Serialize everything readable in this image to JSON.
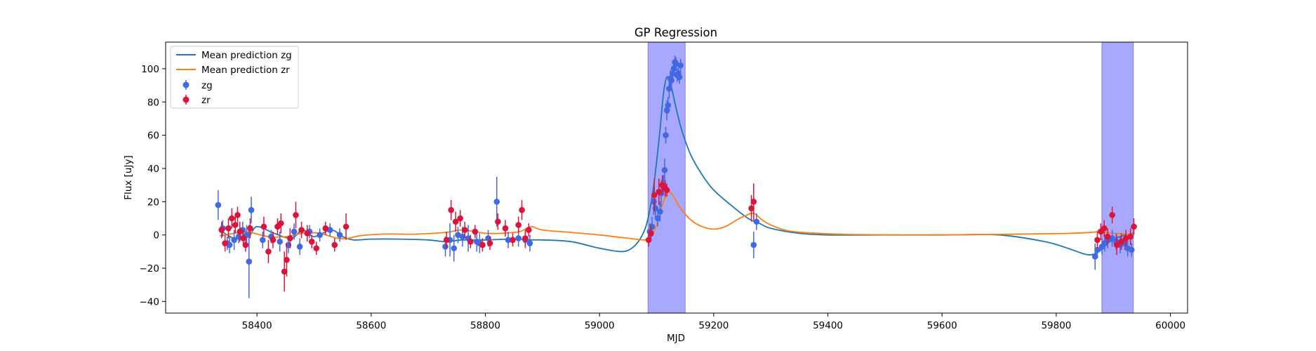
{
  "chart_data": {
    "type": "scatter",
    "title": "GP Regression",
    "xlabel": "MJD",
    "ylabel": "Flux [uJy]",
    "xlim": [
      58240,
      60030
    ],
    "ylim": [
      -47,
      116
    ],
    "xticks": [
      58400,
      58600,
      58800,
      59000,
      59200,
      59400,
      59600,
      59800,
      60000
    ],
    "yticks": [
      -40,
      -20,
      0,
      20,
      40,
      60,
      80,
      100
    ],
    "grid": false,
    "legend_position": "top-left",
    "colors": {
      "mean_zg": "#1f77b4",
      "mean_zr": "#ff7f0e",
      "zg": "#4169e1",
      "zr": "#dc143c",
      "shade": "#a8a8ff"
    },
    "shaded_regions": [
      [
        59085,
        59150
      ],
      [
        59880,
        59935
      ]
    ],
    "series": [
      {
        "name": "Mean prediction zg",
        "kind": "line",
        "x": [
          58335,
          58360,
          58385,
          58400,
          58430,
          58460,
          58480,
          58500,
          58530,
          58550,
          58570,
          58600,
          58650,
          58700,
          58730,
          58760,
          58800,
          58840,
          58860,
          58880,
          58900,
          58950,
          59000,
          59040,
          59060,
          59075,
          59085,
          59095,
          59105,
          59112,
          59118,
          59125,
          59135,
          59145,
          59160,
          59180,
          59200,
          59230,
          59260,
          59280,
          59300,
          59350,
          59400,
          59500,
          59600,
          59700,
          59780,
          59820,
          59845,
          59860,
          59875,
          59890,
          59905,
          59920,
          59935
        ],
        "y": [
          3,
          -2,
          -1,
          5,
          1,
          -2,
          3,
          -1,
          3,
          -1,
          -3,
          -2.5,
          -2.5,
          -3,
          -4,
          -3,
          -3,
          -2.5,
          -2.5,
          -3,
          -3,
          -4,
          -8,
          -10,
          -7,
          0,
          10,
          30,
          60,
          85,
          95,
          90,
          75,
          62,
          48,
          36,
          27,
          18,
          10,
          7,
          4,
          1,
          0,
          0,
          0,
          0,
          -4,
          -8,
          -11,
          -12,
          -10,
          -5,
          -2,
          0,
          1
        ]
      },
      {
        "name": "Mean prediction zr",
        "kind": "line",
        "x": [
          58335,
          58360,
          58380,
          58395,
          58420,
          58450,
          58480,
          58510,
          58540,
          58560,
          58580,
          58620,
          58680,
          58730,
          58760,
          58800,
          58830,
          58860,
          58880,
          58900,
          58950,
          59000,
          59050,
          59080,
          59090,
          59100,
          59110,
          59120,
          59130,
          59140,
          59160,
          59180,
          59200,
          59220,
          59240,
          59255,
          59270,
          59285,
          59300,
          59330,
          59380,
          59450,
          59600,
          59800,
          59860,
          59875,
          59900,
          59935
        ],
        "y": [
          -0.5,
          1,
          2,
          1,
          -1,
          -1,
          1,
          1,
          -2,
          -2,
          -0.5,
          0.5,
          0.5,
          1.5,
          3,
          1,
          1,
          2,
          5,
          3,
          1.5,
          0,
          -2,
          -3,
          -0.5,
          6,
          18,
          26,
          23,
          17,
          9,
          5,
          3.5,
          5,
          9,
          11.5,
          13,
          9,
          6,
          2.5,
          1,
          0.2,
          0,
          0.8,
          1.5,
          2,
          1,
          0.5
        ]
      },
      {
        "name": "zg",
        "kind": "errorbar",
        "x": [
          58332,
          58340,
          58348,
          58352,
          58360,
          58368,
          58375,
          58382,
          58386,
          58390,
          58410,
          58425,
          58440,
          58455,
          58465,
          58475,
          58492,
          58510,
          58528,
          58545,
          58730,
          58738,
          58745,
          58752,
          58760,
          58770,
          58785,
          58790,
          58805,
          58820,
          58840,
          58858,
          58870,
          58878,
          59088,
          59092,
          59095,
          59098,
          59102,
          59106,
          59108,
          59112,
          59114,
          59116,
          59118,
          59120,
          59122,
          59124,
          59126,
          59128,
          59130,
          59132,
          59134,
          59136,
          59138,
          59140,
          59142,
          59270,
          59275,
          59868,
          59872,
          59880,
          59885,
          59890,
          59898,
          59905,
          59912,
          59920,
          59925,
          59932
        ],
        "y": [
          18,
          4,
          -5,
          -6,
          -3,
          -1,
          3,
          0,
          -16,
          15,
          -3,
          -1,
          -4,
          -6,
          2,
          -7,
          2,
          0,
          3,
          0,
          -7,
          -3,
          -8,
          0,
          -1,
          -2,
          -4,
          -5,
          -2,
          20,
          -3,
          -2,
          -3,
          -5,
          2,
          5,
          20,
          16,
          10,
          14,
          25,
          30,
          39,
          60,
          75,
          78,
          88,
          94,
          93,
          97,
          100,
          104,
          103,
          96,
          97,
          95,
          102,
          -6,
          8,
          -13,
          -9,
          -7,
          -5,
          -3,
          -2,
          -4,
          -6,
          -5,
          -8,
          -9
        ],
        "err": [
          9,
          5,
          4,
          5,
          6,
          4,
          5,
          6,
          22,
          8,
          5,
          4,
          6,
          5,
          5,
          5,
          4,
          4,
          4,
          4,
          6,
          10,
          8,
          5,
          6,
          8,
          6,
          6,
          5,
          15,
          5,
          5,
          5,
          5,
          5,
          6,
          8,
          6,
          5,
          6,
          8,
          6,
          7,
          5,
          6,
          5,
          6,
          5,
          5,
          5,
          4,
          4,
          4,
          4,
          4,
          4,
          4,
          8,
          5,
          8,
          5,
          5,
          5,
          5,
          5,
          5,
          5,
          4,
          5,
          4
        ]
      },
      {
        "name": "zr",
        "kind": "errorbar",
        "x": [
          58338,
          58344,
          58350,
          58356,
          58362,
          58366,
          58370,
          58376,
          58380,
          58388,
          58412,
          58420,
          58428,
          58436,
          58442,
          58448,
          58452,
          58458,
          58468,
          58478,
          58488,
          58496,
          58504,
          58520,
          58536,
          58556,
          58732,
          58740,
          58748,
          58756,
          58764,
          58774,
          58782,
          58795,
          58808,
          58822,
          58835,
          58848,
          58858,
          58864,
          58870,
          58876,
          59086,
          59090,
          59096,
          59104,
          59110,
          59115,
          59118,
          59266,
          59270,
          59872,
          59878,
          59884,
          59890,
          59898,
          59906,
          59914,
          59922,
          59930,
          59936
        ],
        "y": [
          3,
          -5,
          4,
          10,
          6,
          12,
          2,
          -2,
          -6,
          4,
          5,
          -10,
          -3,
          5,
          7,
          -22,
          -15,
          -2,
          12,
          3,
          1,
          -4,
          -8,
          4,
          -6,
          5,
          -3,
          15,
          8,
          10,
          3,
          -4,
          2,
          -6,
          -5,
          8,
          4,
          -3,
          6,
          15,
          -2,
          3,
          -3,
          1,
          24,
          26,
          30,
          28,
          27,
          16,
          20,
          -3,
          2,
          4,
          -1,
          12,
          -6,
          -4,
          -2,
          -1,
          5
        ],
        "err": [
          5,
          5,
          6,
          6,
          5,
          5,
          6,
          5,
          4,
          6,
          6,
          7,
          5,
          5,
          6,
          12,
          10,
          6,
          8,
          5,
          5,
          4,
          4,
          4,
          4,
          8,
          5,
          6,
          6,
          5,
          5,
          4,
          4,
          4,
          4,
          5,
          5,
          4,
          5,
          6,
          5,
          4,
          4,
          5,
          10,
          8,
          6,
          5,
          4,
          8,
          11,
          5,
          5,
          5,
          5,
          5,
          6,
          5,
          5,
          5,
          5
        ]
      }
    ]
  }
}
